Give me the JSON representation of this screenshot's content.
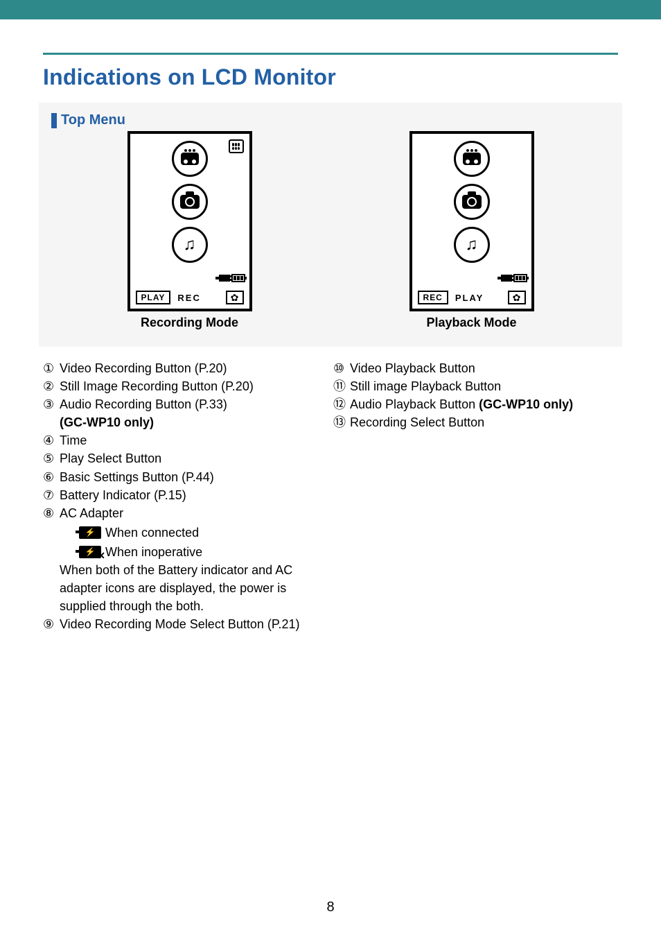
{
  "page_title": "Indications on LCD Monitor",
  "section_heading": "Top Menu",
  "diagrams": {
    "recording": {
      "caption": "Recording Mode",
      "bottom_row": {
        "boxed": "PLAY",
        "plain": "REC"
      }
    },
    "playback": {
      "caption": "Playback Mode",
      "bottom_row": {
        "boxed": "REC",
        "plain": "PLAY"
      }
    }
  },
  "left_items": [
    {
      "n": "①",
      "text": "Video Recording Button (P.20)"
    },
    {
      "n": "②",
      "text": "Still Image Recording Button (P.20)"
    },
    {
      "n": "③",
      "text": "Audio Recording Button (P.33)"
    }
  ],
  "left_item3_sub_bold": "(GC-WP10 only)",
  "left_items2": [
    {
      "n": "④",
      "text": "Time"
    },
    {
      "n": "⑤",
      "text": "Play Select Button"
    },
    {
      "n": "⑥",
      "text": "Basic Settings Button (P.44)"
    },
    {
      "n": "⑦",
      "text": "Battery Indicator (P.15)"
    },
    {
      "n": "⑧",
      "text": "AC Adapter"
    }
  ],
  "ac_sub": {
    "connected": "When connected",
    "inoperative": "When inoperative",
    "note1": "When both of the Battery indicator and AC",
    "note2": "adapter icons are displayed, the power is",
    "note3": "supplied through the both."
  },
  "left_item9": {
    "n": "⑨",
    "text": "Video Recording Mode Select Button (P.21)"
  },
  "right_items": [
    {
      "n": "⑩",
      "text": "Video Playback Button"
    },
    {
      "n": "⑪",
      "text": "Still image Playback Button"
    },
    {
      "n": "⑫",
      "text": "Audio Playback Button ",
      "bold": "(GC-WP10 only)"
    },
    {
      "n": "⑬",
      "text": "Recording Select Button"
    }
  ],
  "page_number": "8",
  "colors": {
    "teal": "#2e8a8a",
    "heading_blue": "#2360a5",
    "panel_bg": "#f5f5f5"
  }
}
